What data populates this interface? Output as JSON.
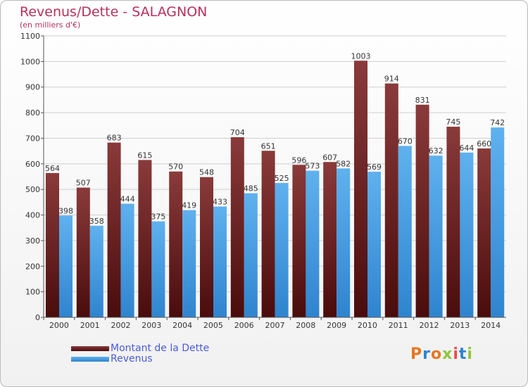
{
  "title": "Revenus/Dette - SALAGNON",
  "subtitle": "(en milliers d'€)",
  "brand": "Proxiti",
  "colors": {
    "dette_top": "#8a3a3a",
    "dette_bottom": "#4a0c0c",
    "revenus_top": "#5fb1ee",
    "revenus_bottom": "#2f84cf",
    "title": "#b8305a",
    "legend_text": "#4a5bd8"
  },
  "chart_data": {
    "type": "bar",
    "categories": [
      "2000",
      "2001",
      "2002",
      "2003",
      "2004",
      "2005",
      "2006",
      "2007",
      "2008",
      "2009",
      "2010",
      "2011",
      "2012",
      "2013",
      "2014"
    ],
    "series": [
      {
        "name": "Montant de la Dette",
        "values": [
          564,
          507,
          683,
          615,
          570,
          548,
          704,
          651,
          596,
          607,
          1003,
          914,
          831,
          745,
          660
        ]
      },
      {
        "name": "Revenus",
        "values": [
          398,
          358,
          444,
          375,
          419,
          433,
          485,
          525,
          573,
          582,
          569,
          670,
          632,
          644,
          742
        ]
      }
    ],
    "ylim": [
      0,
      1100
    ],
    "yticks": [
      0,
      100,
      200,
      300,
      400,
      500,
      600,
      700,
      800,
      900,
      1000,
      1100
    ],
    "grid": true,
    "legend_position": "bottom-left"
  }
}
